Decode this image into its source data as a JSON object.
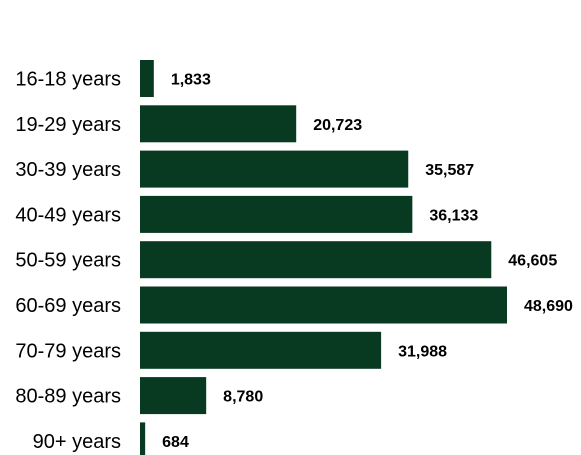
{
  "colors": {
    "bar": "#083a22",
    "text": "#000000",
    "background": "#ffffff"
  },
  "chart_data": {
    "type": "bar",
    "orientation": "horizontal",
    "title": "",
    "xlabel": "",
    "ylabel": "",
    "grid": false,
    "legend": "none",
    "categories": [
      "16-18 years",
      "19-29 years",
      "30-39 years",
      "40-49 years",
      "50-59 years",
      "60-69 years",
      "70-79 years",
      "80-89 years",
      "90+ years"
    ],
    "values": [
      1833,
      20723,
      35587,
      36133,
      46605,
      48690,
      31988,
      8780,
      684
    ],
    "value_labels": [
      "1,833",
      "20,723",
      "35,587",
      "36,133",
      "46,605",
      "48,690",
      "31,988",
      "8,780",
      "684"
    ],
    "xlim": [
      0,
      48690
    ]
  }
}
